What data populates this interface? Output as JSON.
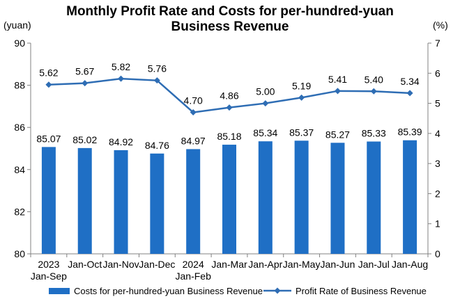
{
  "chart_data": {
    "type": "bar+line",
    "title_line1": "Monthly Profit Rate and Costs for per-hundred-yuan",
    "title_line2": "Business Revenue",
    "y_left_unit": "(yuan)",
    "y_right_unit": "(%)",
    "y_left_ticks": [
      "80",
      "82",
      "84",
      "86",
      "88",
      "90"
    ],
    "y_right_ticks": [
      "0",
      "1",
      "2",
      "3",
      "4",
      "5",
      "6",
      "7"
    ],
    "ylim_left": [
      80,
      90
    ],
    "ylim_right": [
      0,
      7
    ],
    "categories": [
      [
        "2023",
        "Jan-Sep"
      ],
      [
        "Jan-Oct"
      ],
      [
        "Jan-Nov"
      ],
      [
        "Jan-Dec"
      ],
      [
        "2024",
        "Jan-Feb"
      ],
      [
        "Jan-Mar"
      ],
      [
        "Jan-Apr"
      ],
      [
        "Jan-May"
      ],
      [
        "Jan-Jun"
      ],
      [
        "Jan-Jul"
      ],
      [
        "Jan-Aug"
      ]
    ],
    "series": [
      {
        "name": "Costs for per-hundred-yuan Business Revenue",
        "type": "bar",
        "axis": "left",
        "color": "#1f6fc5",
        "values": [
          85.07,
          85.02,
          84.92,
          84.76,
          84.97,
          85.18,
          85.34,
          85.37,
          85.27,
          85.33,
          85.39
        ],
        "labels": [
          "85.07",
          "85.02",
          "84.92",
          "84.76",
          "84.97",
          "85.18",
          "85.34",
          "85.37",
          "85.27",
          "85.33",
          "85.39"
        ]
      },
      {
        "name": "Profit Rate of Business Revenue",
        "type": "line",
        "axis": "right",
        "color": "#2e6db4",
        "values": [
          5.62,
          5.67,
          5.82,
          5.76,
          4.7,
          4.86,
          5.0,
          5.19,
          5.41,
          5.4,
          5.34
        ],
        "labels": [
          "5.62",
          "5.67",
          "5.82",
          "5.76",
          "4.70",
          "4.86",
          "5.00",
          "5.19",
          "5.41",
          "5.40",
          "5.34"
        ]
      }
    ],
    "legend_position": "bottom",
    "grid": false
  }
}
